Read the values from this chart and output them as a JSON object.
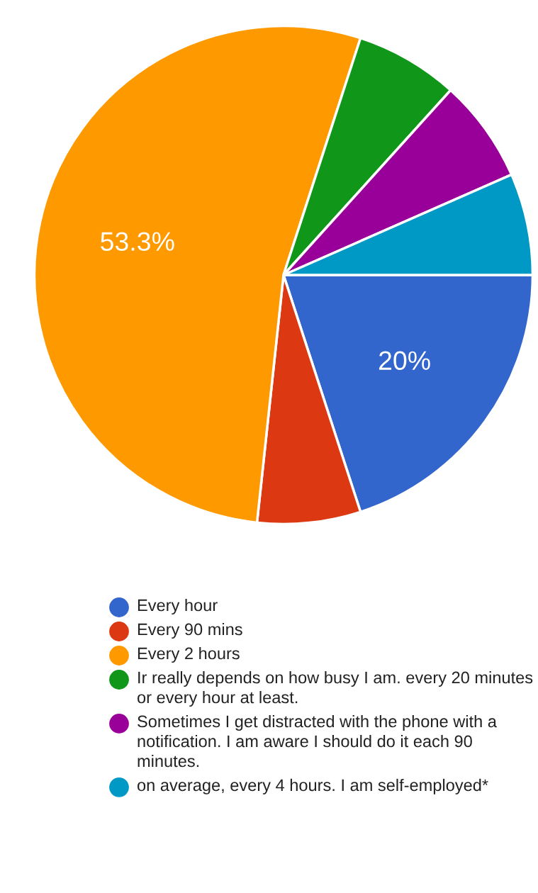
{
  "chart_data": {
    "type": "pie",
    "categories": [
      "Every hour",
      "Every 90 mins",
      "Every 2 hours",
      "Ir really depends on how busy I am. every 20 minutes or every hour at least.",
      "Sometimes I get distracted with the phone with a notification. I am aware I should do it each 90 minutes.",
      "on average, every 4 hours. I am self-employed*"
    ],
    "values": [
      20,
      6.7,
      53.3,
      6.7,
      6.7,
      6.6
    ],
    "colors": [
      "#3366cc",
      "#dc3912",
      "#ff9900",
      "#109618",
      "#990099",
      "#0099c6"
    ],
    "value_labels": [
      "20%",
      null,
      "53.3%",
      null,
      null,
      null
    ],
    "legend": "bottom"
  }
}
